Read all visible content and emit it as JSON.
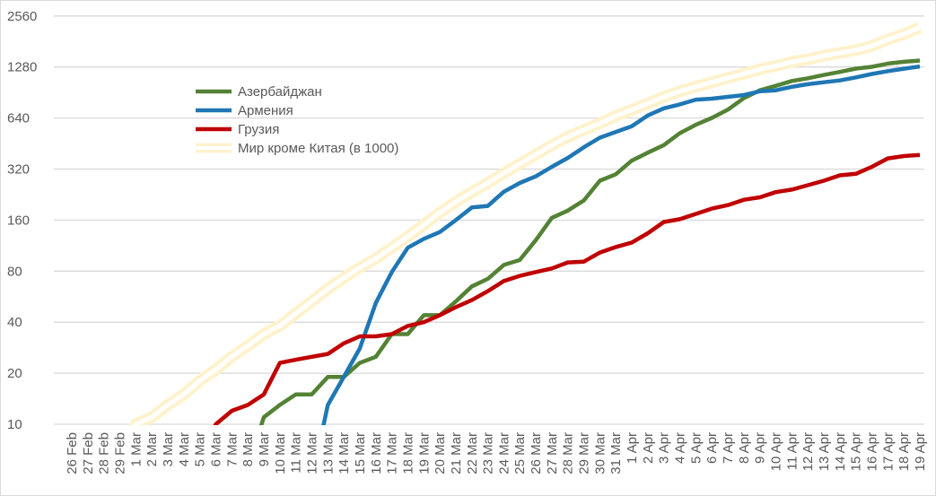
{
  "chart_data": {
    "type": "line",
    "title": "",
    "xlabel": "",
    "ylabel": "",
    "y_scale": "log2",
    "ylim": [
      10,
      2560
    ],
    "y_ticks": [
      10,
      20,
      40,
      80,
      160,
      320,
      640,
      1280,
      2560
    ],
    "grid": "horizontal",
    "legend_position": "top-left",
    "categories": [
      "26 Feb",
      "27 Feb",
      "28 Feb",
      "29 Feb",
      "1 Mar",
      "2 Mar",
      "3 Mar",
      "4 Mar",
      "5 Mar",
      "6 Mar",
      "7 Mar",
      "8 Mar",
      "9 Mar",
      "10 Mar",
      "11 Mar",
      "12 Mar",
      "13 Mar",
      "14 Mar",
      "15 Mar",
      "16 Mar",
      "17 Mar",
      "18 Mar",
      "19 Mar",
      "20 Mar",
      "21 Mar",
      "22 Mar",
      "23 Mar",
      "24 Mar",
      "25 Mar",
      "26 Mar",
      "27 Mar",
      "28 Mar",
      "29 Mar",
      "30 Mar",
      "31 Mar",
      "1 Apr",
      "2 Apr",
      "3 Apr",
      "4 Apr",
      "5 Apr",
      "6 Apr",
      "7 Apr",
      "8 Apr",
      "9 Apr",
      "10 Apr",
      "11 Apr",
      "12 Apr",
      "13 Apr",
      "14 Apr",
      "15 Apr",
      "16 Apr",
      "17 Apr",
      "18 Apr",
      "19 Apr"
    ],
    "series": [
      {
        "name": "Азербайджан",
        "color": "#548235",
        "values": [
          null,
          null,
          null,
          null,
          null,
          null,
          null,
          null,
          null,
          null,
          null,
          null,
          11,
          13,
          15,
          15,
          19,
          19,
          23,
          25,
          34,
          34,
          44,
          44,
          53,
          65,
          72,
          87,
          93,
          122,
          165,
          182,
          209,
          273,
          298,
          359,
          400,
          443,
          521,
          584,
          641,
          717,
          839,
          932,
          991,
          1058,
          1098,
          1148,
          1197,
          1253,
          1283,
          1340,
          1373,
          1398
        ]
      },
      {
        "name": "Армения",
        "color": "#1f77b4",
        "values": [
          null,
          null,
          null,
          null,
          null,
          null,
          null,
          null,
          null,
          null,
          null,
          null,
          null,
          null,
          null,
          null,
          13,
          19,
          28,
          52,
          79,
          110,
          124,
          136,
          160,
          190,
          194,
          235,
          265,
          290,
          330,
          372,
          430,
          490,
          530,
          572,
          663,
          730,
          770,
          822,
          833,
          853,
          874,
          920,
          932,
          978,
          1013,
          1040,
          1066,
          1111,
          1164,
          1210,
          1250,
          1290
        ]
      },
      {
        "name": "Грузия",
        "color": "#c00000",
        "values": [
          null,
          null,
          null,
          null,
          null,
          null,
          null,
          null,
          null,
          10,
          12,
          13,
          15,
          23,
          24,
          25,
          26,
          30,
          33,
          33,
          34,
          38,
          40,
          44,
          49,
          54,
          61,
          70,
          75,
          79,
          83,
          90,
          91,
          103,
          111,
          118,
          134,
          156,
          162,
          174,
          187,
          196,
          211,
          218,
          234,
          242,
          257,
          273,
          294,
          300,
          330,
          370,
          382,
          388
        ]
      },
      {
        "name": "Мир кроме Китая (в 1000)",
        "color": "#fff2cc",
        "values": [
          null,
          null,
          null,
          null,
          10,
          11,
          13,
          15,
          18,
          21,
          25,
          29,
          34,
          38,
          45,
          53,
          63,
          73,
          84,
          95,
          110,
          128,
          150,
          177,
          205,
          234,
          265,
          303,
          344,
          390,
          443,
          495,
          545,
          595,
          658,
          716,
          780,
          853,
          920,
          980,
          1040,
          1100,
          1170,
          1240,
          1300,
          1370,
          1420,
          1490,
          1550,
          1610,
          1700,
          1860,
          2000,
          2190
        ]
      }
    ]
  }
}
